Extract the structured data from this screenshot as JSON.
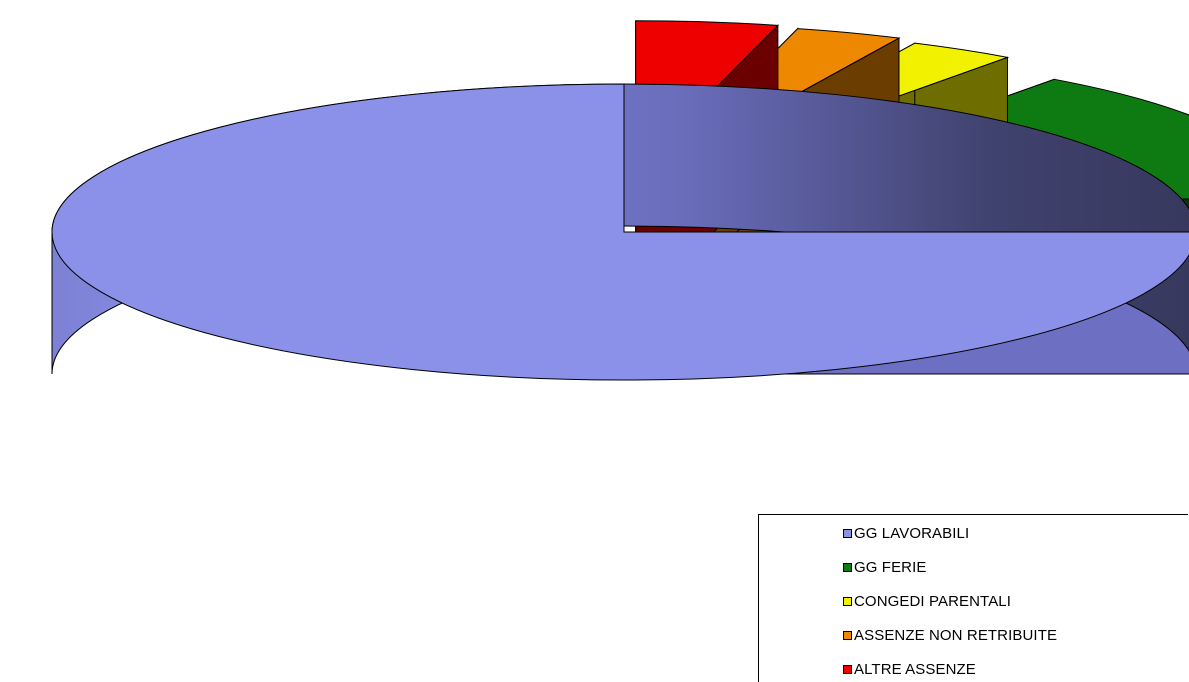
{
  "chart_data": {
    "type": "pie",
    "style": "3d-exploded",
    "title": "",
    "categories": [
      "GG LAVORABILI",
      "GG FERIE",
      "CONGEDI PARENTALI",
      "ASSENZE NON RETRIBUITE",
      "ALTRE ASSENZE"
    ],
    "values": [
      75.0,
      15.0,
      3.0,
      3.0,
      4.0
    ],
    "colors": [
      "#8b90e8",
      "#0e7a12",
      "#f2f200",
      "#ee8800",
      "#ee0000"
    ],
    "legend_position": "bottom-right"
  }
}
